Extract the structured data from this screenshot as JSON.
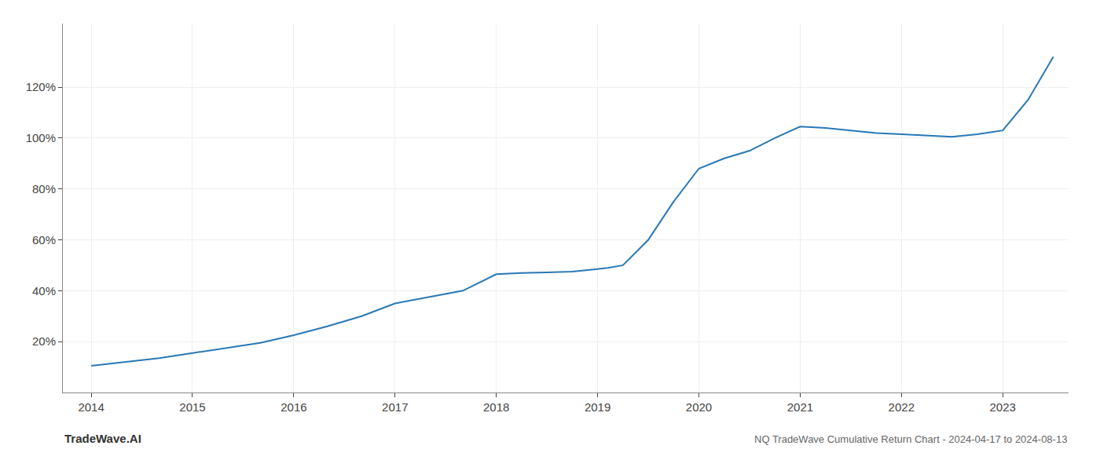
{
  "chart_data": {
    "type": "line",
    "title": "NQ TradeWave Cumulative Return Chart - 2024-04-17 to 2024-08-13",
    "annotations": [
      "TradeWave.AI"
    ],
    "x": [
      2014.0,
      2014.33,
      2014.67,
      2015.0,
      2015.33,
      2015.67,
      2016.0,
      2016.33,
      2016.67,
      2017.0,
      2017.33,
      2017.67,
      2018.0,
      2018.25,
      2018.5,
      2018.75,
      2019.0,
      2019.1,
      2019.25,
      2019.5,
      2019.75,
      2020.0,
      2020.25,
      2020.5,
      2020.75,
      2021.0,
      2021.25,
      2021.5,
      2021.75,
      2022.0,
      2022.25,
      2022.5,
      2022.75,
      2023.0,
      2023.25,
      2023.5
    ],
    "values": [
      10.5,
      12.0,
      13.5,
      15.5,
      17.5,
      19.5,
      22.5,
      26.0,
      30.0,
      35.0,
      37.5,
      40.0,
      46.5,
      47.0,
      47.2,
      47.5,
      48.5,
      49.0,
      50.0,
      60.0,
      75.0,
      88.0,
      92.0,
      95.0,
      100.0,
      104.5,
      104.0,
      103.0,
      102.0,
      101.5,
      101.0,
      100.5,
      101.5,
      103.0,
      115.0,
      132.0
    ],
    "color": "#2878b5",
    "xlim": [
      2013.72,
      2023.65
    ],
    "xticks": [
      2014,
      2015,
      2016,
      2017,
      2018,
      2019,
      2020,
      2021,
      2022,
      2023
    ],
    "ylim": [
      0,
      145
    ],
    "yticks": [
      {
        "value": 20,
        "label": "20%"
      },
      {
        "value": 40,
        "label": "40%"
      },
      {
        "value": 60,
        "label": "60%"
      },
      {
        "value": 80,
        "label": "80%"
      },
      {
        "value": 100,
        "label": "100%"
      },
      {
        "value": 120,
        "label": "120%"
      }
    ],
    "grid": true
  }
}
